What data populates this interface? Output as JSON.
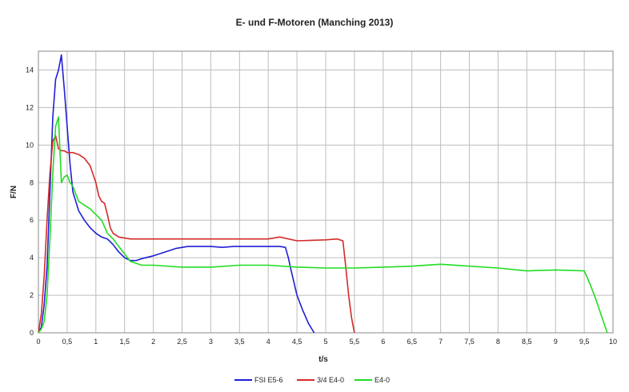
{
  "chart_data": {
    "type": "line",
    "title": "E- und F-Motoren (Manching 2013)",
    "xlabel": "t/s",
    "ylabel": "F/N",
    "xlim": [
      0,
      10
    ],
    "ylim": [
      0,
      15
    ],
    "x_ticks": [
      0,
      0.5,
      1,
      1.5,
      2,
      2.5,
      3,
      3.5,
      4,
      4.5,
      5,
      5.5,
      6,
      6.5,
      7,
      7.5,
      8,
      8.5,
      9,
      9.5,
      10
    ],
    "x_tick_labels": [
      "0",
      "0,5",
      "1",
      "1,5",
      "2",
      "2,5",
      "3",
      "3,5",
      "4",
      "4,5",
      "5",
      "5,5",
      "6",
      "6,5",
      "7",
      "7,5",
      "8",
      "8,5",
      "9",
      "9,5",
      "10"
    ],
    "y_ticks": [
      0,
      2,
      4,
      6,
      8,
      10,
      12,
      14
    ],
    "y_tick_labels": [
      "0",
      "2",
      "4",
      "6",
      "8",
      "10",
      "12",
      "14"
    ],
    "grid": true,
    "legend_position": "bottom",
    "series": [
      {
        "name": "FSI E5-6",
        "color": "#1f1fd6",
        "x": [
          0,
          0.05,
          0.1,
          0.15,
          0.2,
          0.25,
          0.3,
          0.35,
          0.4,
          0.45,
          0.5,
          0.55,
          0.6,
          0.7,
          0.8,
          0.9,
          1.0,
          1.1,
          1.2,
          1.3,
          1.4,
          1.5,
          1.6,
          1.7,
          1.8,
          2.0,
          2.2,
          2.4,
          2.6,
          2.8,
          3.0,
          3.2,
          3.4,
          3.6,
          3.8,
          4.0,
          4.2,
          4.3,
          4.35,
          4.4,
          4.5,
          4.6,
          4.7,
          4.8
        ],
        "y": [
          0,
          0.3,
          1.5,
          3.5,
          7.5,
          11.5,
          13.5,
          14.0,
          14.8,
          13.0,
          11.0,
          9.0,
          7.5,
          6.5,
          6.0,
          5.6,
          5.3,
          5.1,
          5.0,
          4.7,
          4.3,
          4.0,
          3.85,
          3.85,
          3.95,
          4.1,
          4.3,
          4.5,
          4.6,
          4.6,
          4.6,
          4.55,
          4.6,
          4.6,
          4.6,
          4.6,
          4.6,
          4.55,
          4.0,
          3.3,
          2.0,
          1.2,
          0.5,
          0
        ]
      },
      {
        "name": "3/4 E4-0",
        "color": "#d42a2a",
        "x": [
          0,
          0.05,
          0.1,
          0.15,
          0.2,
          0.25,
          0.3,
          0.35,
          0.4,
          0.45,
          0.5,
          0.6,
          0.7,
          0.8,
          0.9,
          1.0,
          1.05,
          1.1,
          1.15,
          1.2,
          1.25,
          1.3,
          1.4,
          1.6,
          2.0,
          2.5,
          3.0,
          3.5,
          4.0,
          4.2,
          4.5,
          5.0,
          5.2,
          5.3,
          5.35,
          5.4,
          5.45,
          5.5
        ],
        "y": [
          0,
          1.0,
          3.0,
          6.0,
          8.5,
          10.2,
          10.5,
          9.8,
          9.7,
          9.7,
          9.6,
          9.6,
          9.5,
          9.3,
          8.9,
          8.0,
          7.3,
          7.0,
          6.9,
          6.3,
          5.6,
          5.3,
          5.1,
          5.0,
          5.0,
          5.0,
          5.0,
          5.0,
          5.0,
          5.1,
          4.9,
          4.95,
          5.0,
          4.9,
          3.5,
          2.0,
          0.8,
          0
        ]
      },
      {
        "name": "E4-0",
        "color": "#22dd22",
        "x": [
          0,
          0.05,
          0.1,
          0.15,
          0.2,
          0.25,
          0.3,
          0.35,
          0.4,
          0.45,
          0.5,
          0.55,
          0.6,
          0.7,
          0.8,
          0.9,
          1.0,
          1.1,
          1.2,
          1.3,
          1.4,
          1.5,
          1.6,
          1.8,
          2.0,
          2.5,
          3.0,
          3.5,
          4.0,
          4.5,
          5.0,
          5.5,
          6.0,
          6.5,
          7.0,
          7.5,
          8.0,
          8.5,
          9.0,
          9.5,
          9.6,
          9.7,
          9.8,
          9.9
        ],
        "y": [
          0,
          0.2,
          0.6,
          2.0,
          5.0,
          8.5,
          11.0,
          11.5,
          8.0,
          8.3,
          8.4,
          8.0,
          7.8,
          7.0,
          6.8,
          6.6,
          6.3,
          6.0,
          5.3,
          5.0,
          4.6,
          4.2,
          3.8,
          3.6,
          3.6,
          3.5,
          3.5,
          3.6,
          3.6,
          3.5,
          3.45,
          3.45,
          3.5,
          3.55,
          3.65,
          3.55,
          3.45,
          3.3,
          3.35,
          3.3,
          2.6,
          1.8,
          0.9,
          0
        ]
      }
    ]
  }
}
